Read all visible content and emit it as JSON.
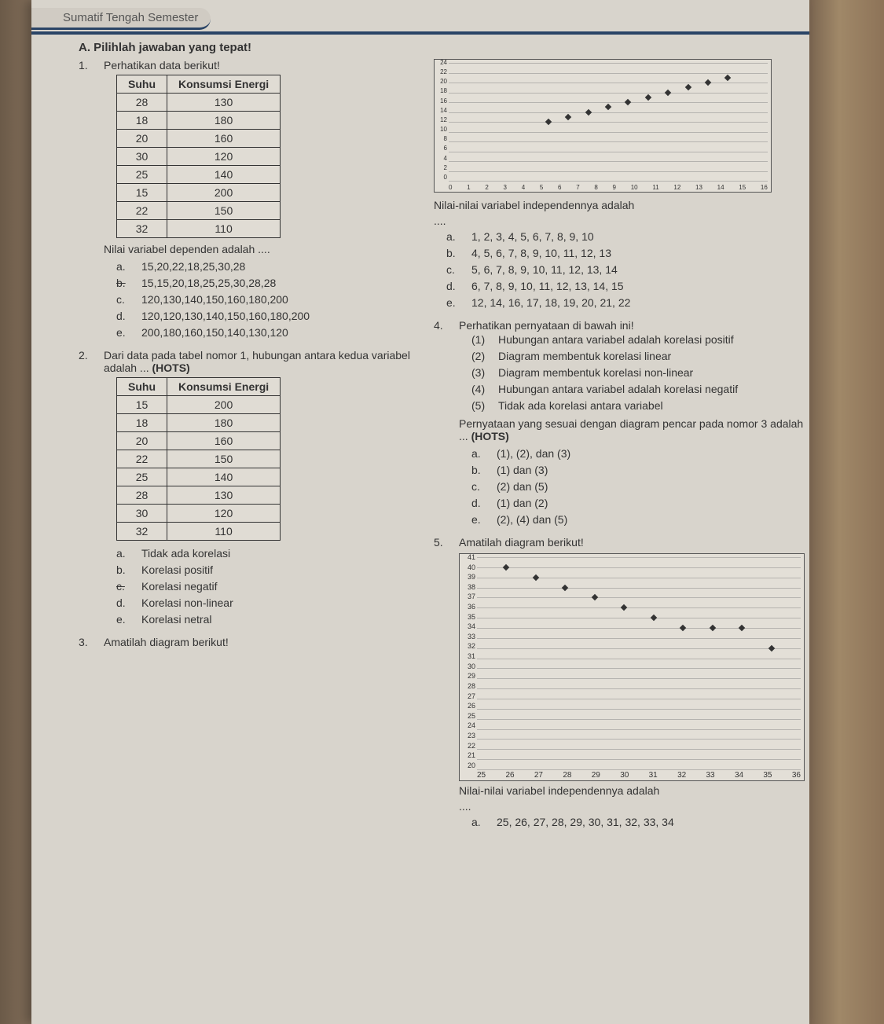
{
  "header": {
    "chip": "Sumatif Tengah Semester"
  },
  "sectionA": {
    "label": "A.",
    "title": "Pilihlah jawaban yang tepat!"
  },
  "q1": {
    "num": "1.",
    "intro": "Perhatikan data berikut!",
    "table": {
      "col_suhu": "Suhu",
      "col_energi": "Konsumsi Energi",
      "rows": [
        {
          "s": "28",
          "e": "130"
        },
        {
          "s": "18",
          "e": "180"
        },
        {
          "s": "20",
          "e": "160"
        },
        {
          "s": "30",
          "e": "120"
        },
        {
          "s": "25",
          "e": "140"
        },
        {
          "s": "15",
          "e": "200"
        },
        {
          "s": "22",
          "e": "150"
        },
        {
          "s": "32",
          "e": "110"
        }
      ]
    },
    "prompt": "Nilai variabel dependen adalah ....",
    "opts": {
      "a": {
        "l": "a.",
        "t": "15,20,22,18,25,30,28"
      },
      "b": {
        "l": "b.",
        "t": "15,15,20,18,25,25,30,28,28"
      },
      "c": {
        "l": "c.",
        "t": "120,130,140,150,160,180,200"
      },
      "d": {
        "l": "d.",
        "t": "120,120,130,140,150,160,180,200"
      },
      "e": {
        "l": "e.",
        "t": "200,180,160,150,140,130,120"
      }
    }
  },
  "q2": {
    "num": "2.",
    "intro_a": "Dari data pada tabel nomor 1, hubungan antara kedua variabel adalah ... ",
    "hots": "(HOTS)",
    "table": {
      "col_suhu": "Suhu",
      "col_energi": "Konsumsi Energi",
      "rows": [
        {
          "s": "15",
          "e": "200"
        },
        {
          "s": "18",
          "e": "180"
        },
        {
          "s": "20",
          "e": "160"
        },
        {
          "s": "22",
          "e": "150"
        },
        {
          "s": "25",
          "e": "140"
        },
        {
          "s": "28",
          "e": "130"
        },
        {
          "s": "30",
          "e": "120"
        },
        {
          "s": "32",
          "e": "110"
        }
      ]
    },
    "opts": {
      "a": {
        "l": "a.",
        "t": "Tidak ada korelasi"
      },
      "b": {
        "l": "b.",
        "t": "Korelasi positif"
      },
      "c": {
        "l": "c.",
        "t": "Korelasi negatif"
      },
      "d": {
        "l": "d.",
        "t": "Korelasi non-linear"
      },
      "e": {
        "l": "e.",
        "t": "Korelasi netral"
      }
    }
  },
  "q3": {
    "num": "3.",
    "intro": "Amatilah diagram berikut!",
    "chart": {
      "type": "scatter",
      "background_color": "#e3dfd7",
      "grid_color": "#888888",
      "point_color": "#333333",
      "ylim": [
        0,
        24
      ],
      "ytick_step": 2,
      "yticks": [
        "24",
        "22",
        "20",
        "18",
        "16",
        "14",
        "12",
        "10",
        "8",
        "6",
        "4",
        "2",
        "0"
      ],
      "xlim": [
        0,
        16
      ],
      "xtick_step": 1,
      "xticks": [
        "0",
        "1",
        "2",
        "3",
        "4",
        "5",
        "6",
        "7",
        "8",
        "9",
        "10",
        "11",
        "12",
        "13",
        "14",
        "15",
        "16"
      ],
      "points": [
        {
          "x": 5,
          "y": 12
        },
        {
          "x": 6,
          "y": 13
        },
        {
          "x": 7,
          "y": 14
        },
        {
          "x": 8,
          "y": 15
        },
        {
          "x": 9,
          "y": 16
        },
        {
          "x": 10,
          "y": 17
        },
        {
          "x": 11,
          "y": 18
        },
        {
          "x": 12,
          "y": 19
        },
        {
          "x": 13,
          "y": 20
        },
        {
          "x": 14,
          "y": 21
        }
      ]
    },
    "prompt": "Nilai-nilai variabel independennya adalah",
    "ell": "....",
    "opts": {
      "a": {
        "l": "a.",
        "t": "1, 2, 3, 4, 5, 6, 7, 8, 9, 10"
      },
      "b": {
        "l": "b.",
        "t": "4, 5, 6, 7, 8, 9, 10, 11, 12, 13"
      },
      "c": {
        "l": "c.",
        "t": "5, 6, 7, 8, 9, 10, 11, 12, 13, 14"
      },
      "d": {
        "l": "d.",
        "t": "6, 7, 8, 9, 10, 11, 12, 13, 14, 15"
      },
      "e": {
        "l": "e.",
        "t": "12, 14, 16, 17, 18, 19, 20, 21, 22"
      }
    }
  },
  "q4": {
    "num": "4.",
    "intro": "Perhatikan pernyataan di bawah ini!",
    "stmts": {
      "s1": {
        "l": "(1)",
        "t": "Hubungan antara variabel adalah korelasi positif"
      },
      "s2": {
        "l": "(2)",
        "t": "Diagram membentuk korelasi linear"
      },
      "s3": {
        "l": "(3)",
        "t": "Diagram membentuk korelasi non-linear"
      },
      "s4": {
        "l": "(4)",
        "t": "Hubungan antara variabel adalah korelasi negatif"
      },
      "s5": {
        "l": "(5)",
        "t": "Tidak ada korelasi antara variabel"
      }
    },
    "prompt_a": "Pernyataan yang sesuai dengan diagram pencar pada nomor 3 adalah ... ",
    "hots": "(HOTS)",
    "opts": {
      "a": {
        "l": "a.",
        "t": "(1), (2), dan (3)"
      },
      "b": {
        "l": "b.",
        "t": "(1) dan (3)"
      },
      "c": {
        "l": "c.",
        "t": "(2) dan (5)"
      },
      "d": {
        "l": "d.",
        "t": "(1) dan (2)"
      },
      "e": {
        "l": "e.",
        "t": "(2), (4) dan (5)"
      }
    }
  },
  "q5": {
    "num": "5.",
    "intro": "Amatilah diagram berikut!",
    "chart": {
      "type": "scatter",
      "background_color": "#e3dfd7",
      "grid_color": "#888888",
      "point_color": "#333333",
      "ylim": [
        20,
        41
      ],
      "ytick_step": 1,
      "yticks": [
        "41",
        "40",
        "39",
        "38",
        "37",
        "36",
        "35",
        "34",
        "33",
        "32",
        "31",
        "30",
        "29",
        "28",
        "27",
        "26",
        "25",
        "24",
        "23",
        "22",
        "21",
        "20"
      ],
      "xlim": [
        25,
        36
      ],
      "xtick_step": 1,
      "xticks": [
        "25",
        "26",
        "27",
        "28",
        "29",
        "30",
        "31",
        "32",
        "33",
        "34",
        "35",
        "36"
      ],
      "points": [
        {
          "x": 26,
          "y": 40
        },
        {
          "x": 27,
          "y": 39
        },
        {
          "x": 28,
          "y": 38
        },
        {
          "x": 29,
          "y": 37
        },
        {
          "x": 30,
          "y": 36
        },
        {
          "x": 31,
          "y": 35
        },
        {
          "x": 32,
          "y": 34
        },
        {
          "x": 33,
          "y": 34
        },
        {
          "x": 34,
          "y": 34
        },
        {
          "x": 35,
          "y": 32
        }
      ]
    },
    "prompt": "Nilai-nilai variabel independennya adalah",
    "ell": "....",
    "opts": {
      "a": {
        "l": "a.",
        "t": "25, 26, 27, 28, 29, 30, 31, 32, 33, 34"
      }
    }
  }
}
